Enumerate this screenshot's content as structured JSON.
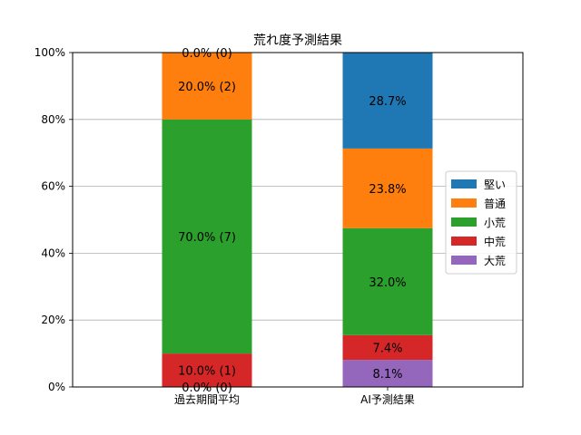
{
  "chart_data": {
    "type": "bar",
    "stacked": true,
    "percent": true,
    "title": "荒れ度予測結果",
    "categories": [
      "過去期間平均",
      "AI予測結果"
    ],
    "ylim": [
      0,
      100
    ],
    "yticks": [
      "0%",
      "20%",
      "40%",
      "60%",
      "80%",
      "100%"
    ],
    "ytick_values": [
      0,
      20,
      40,
      60,
      80,
      100
    ],
    "grid": "y",
    "legend_position": "center-right",
    "series": [
      {
        "name": "大荒",
        "color": "#9467bd",
        "values": [
          0.0,
          8.1
        ],
        "labels": [
          "0.0% (0)",
          "8.1%"
        ]
      },
      {
        "name": "中荒",
        "color": "#d62728",
        "values": [
          10.0,
          7.4
        ],
        "labels": [
          "10.0% (1)",
          "7.4%"
        ]
      },
      {
        "name": "小荒",
        "color": "#2ca02c",
        "values": [
          70.0,
          32.0
        ],
        "labels": [
          "70.0% (7)",
          "32.0%"
        ]
      },
      {
        "name": "普通",
        "color": "#ff7f0e",
        "values": [
          20.0,
          23.8
        ],
        "labels": [
          "20.0% (2)",
          "23.8%"
        ]
      },
      {
        "name": "堅い",
        "color": "#1f77b4",
        "values": [
          0.0,
          28.7
        ],
        "labels": [
          "0.0% (0)",
          "28.7%"
        ]
      }
    ],
    "legend_order": [
      "堅い",
      "普通",
      "小荒",
      "中荒",
      "大荒"
    ]
  }
}
